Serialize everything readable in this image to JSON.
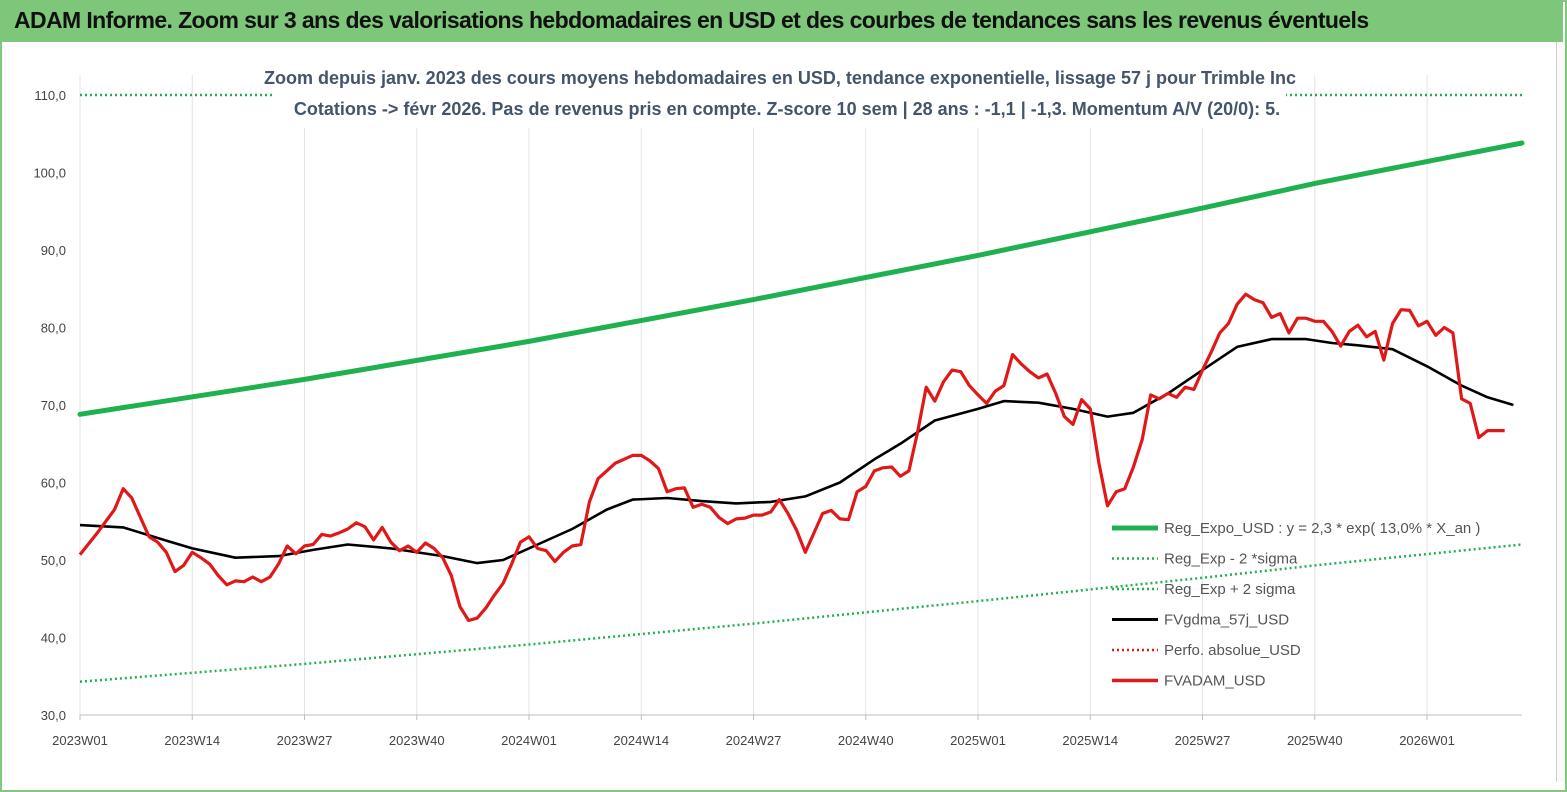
{
  "window": {
    "banner_title": "ADAM Informe. Zoom sur 3 ans des valorisations hebdomadaires en USD et des courbes de tendances sans les revenus éventuels"
  },
  "colors": {
    "banner_bg": "#7dc67a",
    "trend": "#1fb14f",
    "bands": "#1fb14f",
    "smooth": "#000000",
    "price": "#e01818",
    "perfo": "#e01818"
  },
  "chart_data": {
    "type": "line",
    "title_line1": "Zoom depuis janv. 2023 des cours moyens hebdomadaires en USD, tendance exponentielle, lissage 57 j pour Trimble Inc",
    "title_line2": "Cotations -> févr 2026.  Pas de revenus pris en compte. Z-score 10 sem | 28 ans : -1,1 | -1,3. Momentum A/V (20/0): 5.",
    "ylim": [
      30,
      110
    ],
    "y_ticks": [
      "30,0",
      "40,0",
      "50,0",
      "60,0",
      "70,0",
      "80,0",
      "90,0",
      "100,0",
      "110,0"
    ],
    "x_range": [
      0,
      167
    ],
    "x_ticks": [
      {
        "label": "2023W01",
        "x": 0
      },
      {
        "label": "2023W14",
        "x": 13
      },
      {
        "label": "2023W27",
        "x": 26
      },
      {
        "label": "2023W40",
        "x": 39
      },
      {
        "label": "2024W01",
        "x": 52
      },
      {
        "label": "2024W14",
        "x": 65
      },
      {
        "label": "2024W27",
        "x": 78
      },
      {
        "label": "2024W40",
        "x": 91
      },
      {
        "label": "2025W01",
        "x": 104
      },
      {
        "label": "2025W14",
        "x": 117
      },
      {
        "label": "2025W27",
        "x": 130
      },
      {
        "label": "2025W40",
        "x": 143
      },
      {
        "label": "2026W01",
        "x": 156
      }
    ],
    "legend_position": "bottom-right",
    "grid": "vertical",
    "legend": [
      {
        "key": "trend",
        "label": "Reg_Expo_USD : y = 2,3  * exp( 13,0% *  X_an )",
        "style": "solid-thick"
      },
      {
        "key": "lower",
        "label": "Reg_Exp - 2 *sigma",
        "style": "dotted-green"
      },
      {
        "key": "upper",
        "label": "Reg_Exp + 2 sigma",
        "style": "dotted-green"
      },
      {
        "key": "smooth",
        "label": "FVgdma_57j_USD",
        "style": "solid-black"
      },
      {
        "key": "perfo",
        "label": "Perfo. absolue_USD",
        "style": "dotted-red"
      },
      {
        "key": "price",
        "label": "FVADAM_USD",
        "style": "solid-red"
      }
    ],
    "series": [
      {
        "key": "trend",
        "points": [
          [
            0,
            68.8
          ],
          [
            26,
            73.3
          ],
          [
            52,
            78.2
          ],
          [
            78,
            83.6
          ],
          [
            104,
            89.3
          ],
          [
            130,
            95.4
          ],
          [
            143,
            98.6
          ],
          [
            167,
            103.8
          ]
        ]
      },
      {
        "key": "lower",
        "points": [
          [
            0,
            34.3
          ],
          [
            26,
            36.6
          ],
          [
            52,
            39.1
          ],
          [
            78,
            41.8
          ],
          [
            104,
            44.7
          ],
          [
            130,
            47.7
          ],
          [
            143,
            49.3
          ],
          [
            167,
            52.0
          ]
        ]
      },
      {
        "key": "upper",
        "points": [
          [
            0,
            110.0
          ],
          [
            167,
            110.0
          ]
        ]
      },
      {
        "key": "smooth",
        "points": [
          [
            0,
            54.5
          ],
          [
            5,
            54.2
          ],
          [
            10,
            52.5
          ],
          [
            13,
            51.5
          ],
          [
            18,
            50.3
          ],
          [
            23,
            50.5
          ],
          [
            27,
            51.3
          ],
          [
            31,
            52.0
          ],
          [
            36,
            51.5
          ],
          [
            42,
            50.5
          ],
          [
            46,
            49.6
          ],
          [
            49,
            50.0
          ],
          [
            53,
            52.0
          ],
          [
            57,
            54.0
          ],
          [
            61,
            56.5
          ],
          [
            64,
            57.8
          ],
          [
            68,
            58.0
          ],
          [
            72,
            57.6
          ],
          [
            76,
            57.3
          ],
          [
            80,
            57.5
          ],
          [
            84,
            58.2
          ],
          [
            88,
            60.0
          ],
          [
            92,
            63.0
          ],
          [
            95,
            65.0
          ],
          [
            99,
            68.0
          ],
          [
            104,
            69.5
          ],
          [
            107,
            70.5
          ],
          [
            111,
            70.3
          ],
          [
            115,
            69.5
          ],
          [
            119,
            68.5
          ],
          [
            122,
            69.0
          ],
          [
            126,
            71.5
          ],
          [
            130,
            74.5
          ],
          [
            134,
            77.5
          ],
          [
            138,
            78.5
          ],
          [
            142,
            78.5
          ],
          [
            145,
            78.0
          ],
          [
            148,
            77.7
          ],
          [
            152,
            77.2
          ],
          [
            156,
            75.0
          ],
          [
            160,
            72.5
          ],
          [
            163,
            71.0
          ],
          [
            166,
            70.0
          ]
        ]
      },
      {
        "key": "price",
        "points": [
          [
            0,
            50.7
          ],
          [
            2,
            53.5
          ],
          [
            4,
            56.5
          ],
          [
            5,
            59.2
          ],
          [
            6,
            58.0
          ],
          [
            7,
            55.5
          ],
          [
            8,
            53.0
          ],
          [
            9,
            52.3
          ],
          [
            10,
            51.0
          ],
          [
            11,
            48.5
          ],
          [
            12,
            49.3
          ],
          [
            13,
            51.0
          ],
          [
            14,
            50.3
          ],
          [
            15,
            49.5
          ],
          [
            16,
            48.0
          ],
          [
            17,
            46.8
          ],
          [
            18,
            47.3
          ],
          [
            19,
            47.2
          ],
          [
            20,
            47.8
          ],
          [
            21,
            47.2
          ],
          [
            22,
            47.8
          ],
          [
            23,
            49.5
          ],
          [
            24,
            51.8
          ],
          [
            25,
            50.8
          ],
          [
            26,
            51.8
          ],
          [
            27,
            52.0
          ],
          [
            28,
            53.3
          ],
          [
            29,
            53.1
          ],
          [
            30,
            53.5
          ],
          [
            31,
            54.0
          ],
          [
            32,
            54.8
          ],
          [
            33,
            54.3
          ],
          [
            34,
            52.6
          ],
          [
            35,
            54.2
          ],
          [
            36,
            52.3
          ],
          [
            37,
            51.2
          ],
          [
            38,
            51.8
          ],
          [
            39,
            51.0
          ],
          [
            40,
            52.2
          ],
          [
            41,
            51.5
          ],
          [
            42,
            50.3
          ],
          [
            43,
            48.0
          ],
          [
            44,
            44.0
          ],
          [
            45,
            42.2
          ],
          [
            46,
            42.5
          ],
          [
            47,
            43.8
          ],
          [
            48,
            45.5
          ],
          [
            49,
            47.0
          ],
          [
            50,
            49.5
          ],
          [
            51,
            52.3
          ],
          [
            52,
            53.0
          ],
          [
            53,
            51.5
          ],
          [
            54,
            51.2
          ],
          [
            55,
            49.8
          ],
          [
            56,
            51.0
          ],
          [
            57,
            51.8
          ],
          [
            58,
            52.0
          ],
          [
            59,
            57.5
          ],
          [
            60,
            60.5
          ],
          [
            61,
            61.5
          ],
          [
            62,
            62.5
          ],
          [
            63,
            63.0
          ],
          [
            64,
            63.5
          ],
          [
            65,
            63.5
          ],
          [
            66,
            62.8
          ],
          [
            67,
            61.8
          ],
          [
            68,
            58.8
          ],
          [
            69,
            59.2
          ],
          [
            70,
            59.3
          ],
          [
            71,
            56.8
          ],
          [
            72,
            57.2
          ],
          [
            73,
            56.8
          ],
          [
            74,
            55.5
          ],
          [
            75,
            54.7
          ],
          [
            76,
            55.3
          ],
          [
            77,
            55.4
          ],
          [
            78,
            55.8
          ],
          [
            79,
            55.8
          ],
          [
            80,
            56.2
          ],
          [
            81,
            57.8
          ],
          [
            82,
            56.0
          ],
          [
            83,
            53.8
          ],
          [
            84,
            51.0
          ],
          [
            85,
            53.5
          ],
          [
            86,
            56.0
          ],
          [
            87,
            56.4
          ],
          [
            88,
            55.3
          ],
          [
            89,
            55.2
          ],
          [
            90,
            58.8
          ],
          [
            91,
            59.5
          ],
          [
            92,
            61.5
          ],
          [
            93,
            61.9
          ],
          [
            94,
            62.0
          ],
          [
            95,
            60.8
          ],
          [
            96,
            61.5
          ],
          [
            97,
            66.5
          ],
          [
            98,
            72.3
          ],
          [
            99,
            70.5
          ],
          [
            100,
            73.0
          ],
          [
            101,
            74.5
          ],
          [
            102,
            74.3
          ],
          [
            103,
            72.5
          ],
          [
            104,
            71.3
          ],
          [
            105,
            70.2
          ],
          [
            106,
            71.8
          ],
          [
            107,
            72.5
          ],
          [
            108,
            76.5
          ],
          [
            109,
            75.3
          ],
          [
            110,
            74.3
          ],
          [
            111,
            73.5
          ],
          [
            112,
            74.0
          ],
          [
            113,
            71.5
          ],
          [
            114,
            68.5
          ],
          [
            115,
            67.5
          ],
          [
            116,
            70.7
          ],
          [
            117,
            69.5
          ],
          [
            118,
            62.5
          ],
          [
            119,
            57.0
          ],
          [
            120,
            58.8
          ],
          [
            121,
            59.2
          ],
          [
            122,
            62.0
          ],
          [
            123,
            65.5
          ],
          [
            124,
            71.3
          ],
          [
            125,
            70.8
          ],
          [
            126,
            71.5
          ],
          [
            127,
            71.0
          ],
          [
            128,
            72.3
          ],
          [
            129,
            72.0
          ],
          [
            130,
            74.5
          ],
          [
            131,
            76.8
          ],
          [
            132,
            79.3
          ],
          [
            133,
            80.5
          ],
          [
            134,
            83.0
          ],
          [
            135,
            84.3
          ],
          [
            136,
            83.6
          ],
          [
            137,
            83.2
          ],
          [
            138,
            81.3
          ],
          [
            139,
            81.8
          ],
          [
            140,
            79.3
          ],
          [
            141,
            81.2
          ],
          [
            142,
            81.2
          ],
          [
            143,
            80.8
          ],
          [
            144,
            80.8
          ],
          [
            145,
            79.5
          ],
          [
            146,
            77.6
          ],
          [
            147,
            79.5
          ],
          [
            148,
            80.3
          ],
          [
            149,
            78.8
          ],
          [
            150,
            79.5
          ],
          [
            151,
            75.8
          ],
          [
            152,
            80.5
          ],
          [
            153,
            82.3
          ],
          [
            154,
            82.2
          ],
          [
            155,
            80.2
          ],
          [
            156,
            80.8
          ],
          [
            157,
            79.0
          ],
          [
            158,
            80.0
          ],
          [
            159,
            79.3
          ],
          [
            160,
            70.8
          ],
          [
            161,
            70.2
          ],
          [
            162,
            65.8
          ],
          [
            163,
            66.7
          ],
          [
            164,
            66.7
          ],
          [
            165,
            66.7
          ]
        ]
      }
    ]
  }
}
